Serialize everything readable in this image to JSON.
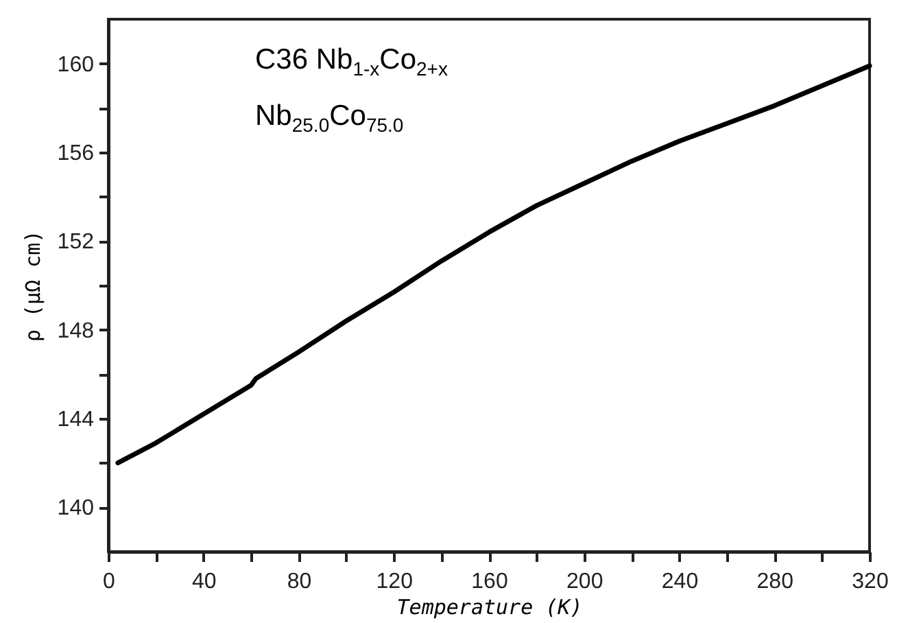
{
  "chart_data": {
    "type": "line",
    "xlabel": "Temperature (K)",
    "ylabel": "ρ (μΩ cm)",
    "annotations": [
      "C36 Nb$_{1-x}$Co$_{2+x}$",
      "Nb$_{25.0}$Co$_{75.0}$"
    ],
    "x": [
      4,
      20,
      40,
      60,
      62,
      80,
      100,
      120,
      140,
      160,
      180,
      200,
      220,
      240,
      260,
      280,
      300,
      320
    ],
    "series": [
      {
        "color": "#000000",
        "values": [
          142.0,
          142.9,
          144.2,
          145.5,
          145.8,
          147.0,
          148.4,
          149.7,
          151.1,
          152.4,
          153.6,
          154.6,
          155.6,
          156.5,
          157.3,
          158.1,
          159.0,
          159.9
        ]
      }
    ],
    "xlim": [
      0,
      320
    ],
    "xticks": [
      0,
      {
        "value": 20,
        "label": null
      },
      40,
      {
        "value": 60,
        "label": null
      },
      80,
      {
        "value": 100,
        "label": null
      },
      120,
      {
        "value": 140,
        "label": null
      },
      160,
      {
        "value": 180,
        "label": null
      },
      200,
      {
        "value": 220,
        "label": null
      },
      240,
      {
        "value": 260,
        "label": null
      },
      280,
      {
        "value": 300,
        "label": null
      },
      320
    ],
    "ylim": [
      138,
      162
    ],
    "yticks": [
      140,
      {
        "value": 142,
        "label": null
      },
      144,
      {
        "value": 146,
        "label": null
      },
      148,
      {
        "value": 150,
        "label": null
      },
      152,
      {
        "value": 154,
        "label": null
      },
      156,
      {
        "value": 158,
        "label": null
      },
      160
    ],
    "marker": "none",
    "line_style": "solid"
  }
}
